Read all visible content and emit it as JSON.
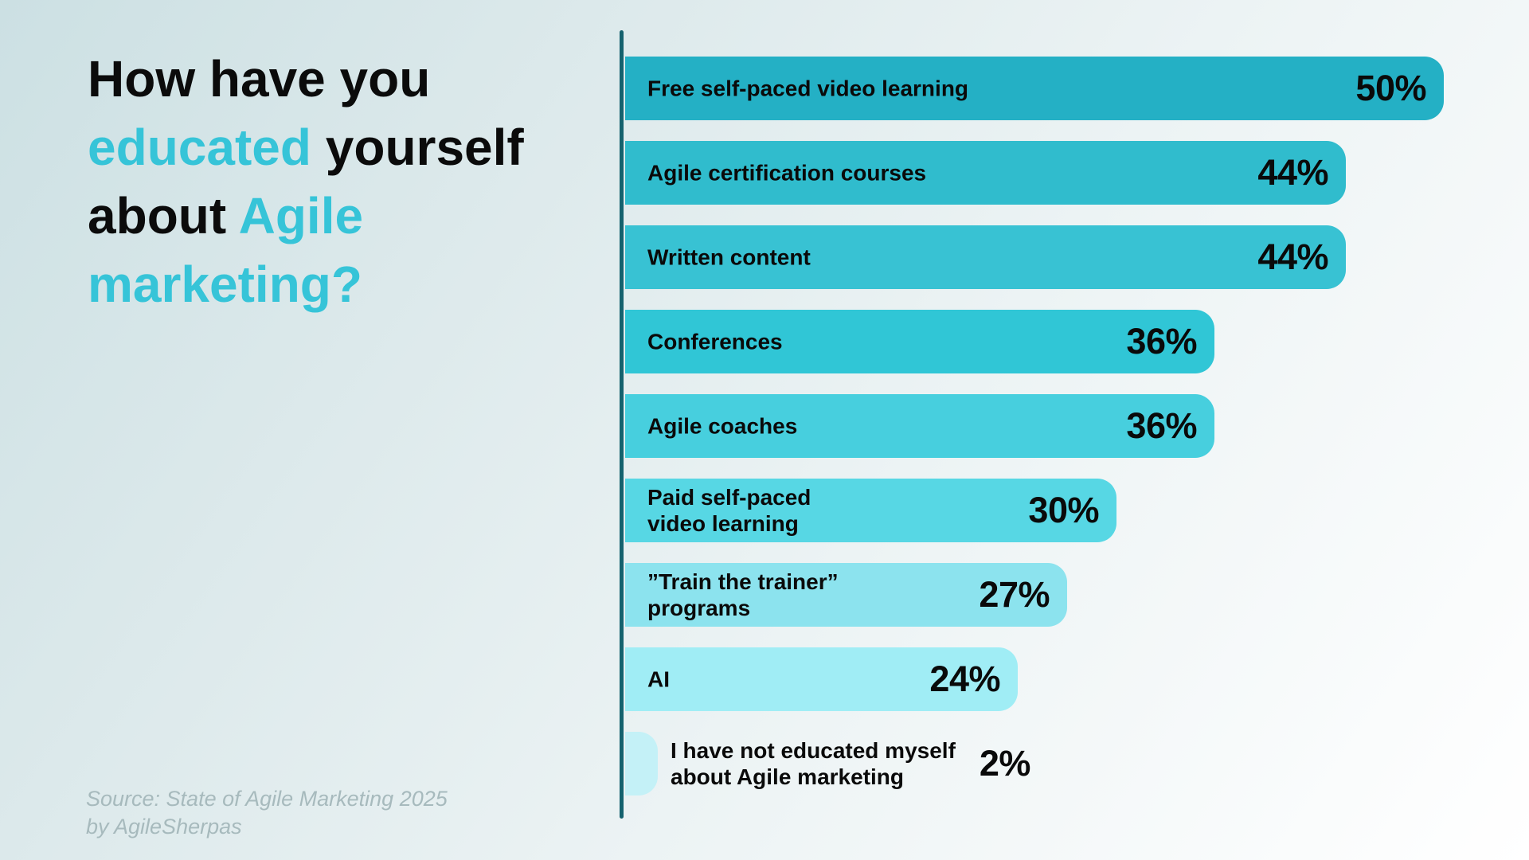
{
  "title": {
    "l1": "How have you",
    "l2a": "educated",
    "l2b": " yourself",
    "l3a": "about",
    "l3b": " Agile",
    "l4": "marketing?"
  },
  "source": {
    "line1": "Source: State of Agile Marketing 2025",
    "line2": "by AgileSherpas"
  },
  "colors": {
    "accent_teal": "#36c4d8",
    "axis_line": "#15626e",
    "text_dark": "#0a0a0a",
    "source_grey": "#a7babd",
    "background_start": "#cce0e3",
    "background_end": "#ffffff"
  },
  "chart_data": {
    "type": "bar",
    "orientation": "horizontal",
    "title": "How have you educated yourself about Agile marketing?",
    "categories": [
      "Free self-paced video learning",
      "Agile certification courses",
      "Written content",
      "Conferences",
      "Agile coaches",
      "Paid self-paced\nvideo learning",
      "”Train the trainer”\nprograms",
      "AI",
      "I have not educated myself\nabout Agile marketing"
    ],
    "values": [
      50,
      44,
      44,
      36,
      36,
      30,
      27,
      24,
      2
    ],
    "value_labels": [
      "50%",
      "44%",
      "44%",
      "36%",
      "36%",
      "30%",
      "27%",
      "24%",
      "2%"
    ],
    "bar_colors": [
      "#24b0c5",
      "#30bccd",
      "#38c2d3",
      "#30c6d6",
      "#47cfde",
      "#57d7e4",
      "#8ce3ee",
      "#a0edf5",
      "#c4f1f7"
    ],
    "value_outside": [
      false,
      false,
      false,
      false,
      false,
      false,
      false,
      false,
      true
    ],
    "xlim": [
      0,
      50
    ],
    "grid": false,
    "legend": false,
    "value_label_position": "inside-right"
  }
}
